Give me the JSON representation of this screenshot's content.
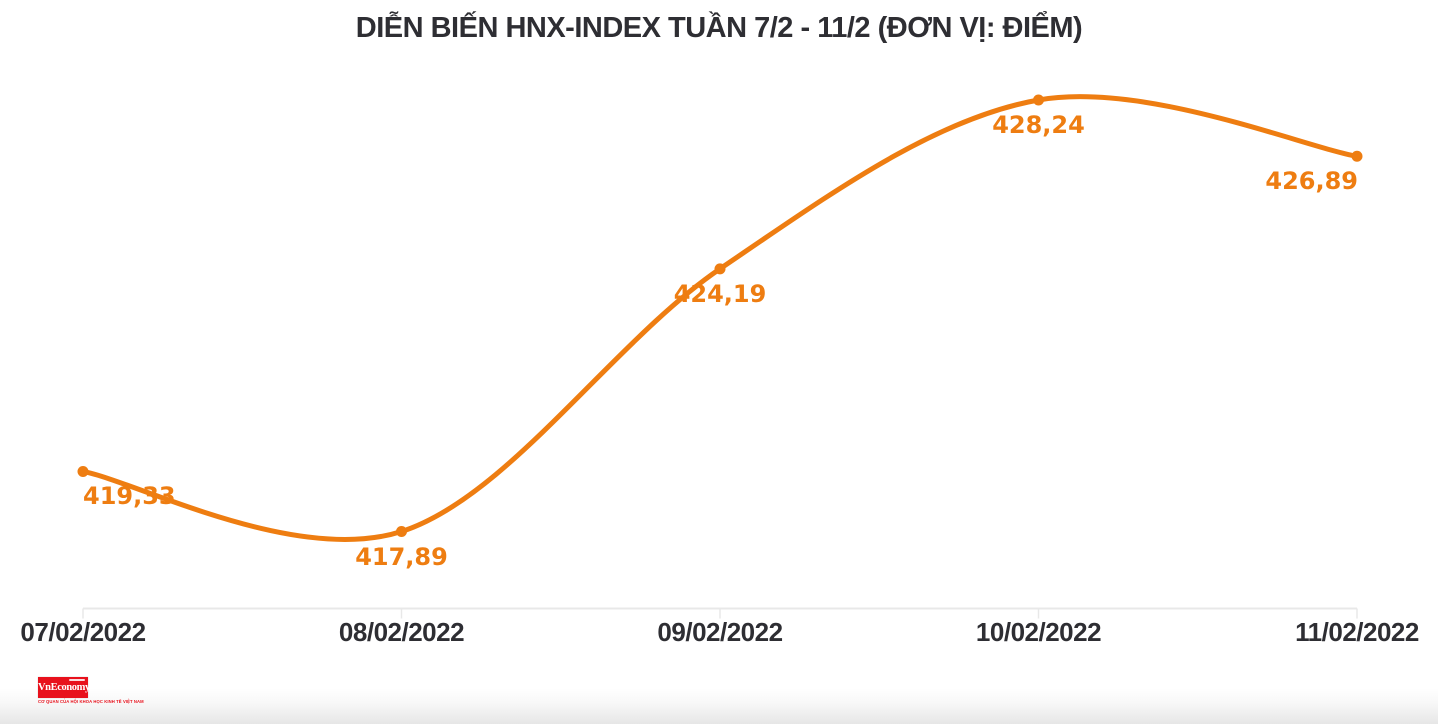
{
  "title": "DIỄN BIẾN HNX-INDEX TUẦN 7/2 - 11/2 (ĐƠN VỊ: ĐIỂM)",
  "chart_data": {
    "type": "line",
    "title": "DIỄN BIẾN HNX-INDEX TUẦN 7/2 - 11/2 (ĐƠN VỊ: ĐIỂM)",
    "series_name": "HNX-INDEX",
    "categories": [
      "07/02/2022",
      "08/02/2022",
      "09/02/2022",
      "10/02/2022",
      "11/02/2022"
    ],
    "values": [
      419.33,
      417.89,
      424.19,
      428.24,
      426.89
    ],
    "point_labels": [
      "419,33",
      "417,89",
      "424,19",
      "428,24",
      "426,89"
    ],
    "unit": "ĐIỂM",
    "ylim": [
      416.5,
      429.5
    ],
    "xlabel": "",
    "ylabel": "",
    "grid": false,
    "legend_position": "none",
    "line_color": "#ee7d11",
    "marker": "circle",
    "smooth": true
  },
  "colors": {
    "accent_orange": "#ee7d11",
    "text_dark": "#2e2e33",
    "axis_gray": "#e8e8e8",
    "logo_red": "#e8111c"
  },
  "logo": {
    "name": "VnEconomy",
    "tagline": "CƠ QUAN CỦA HỘI KHOA HỌC KINH TẾ VIỆT NAM"
  }
}
